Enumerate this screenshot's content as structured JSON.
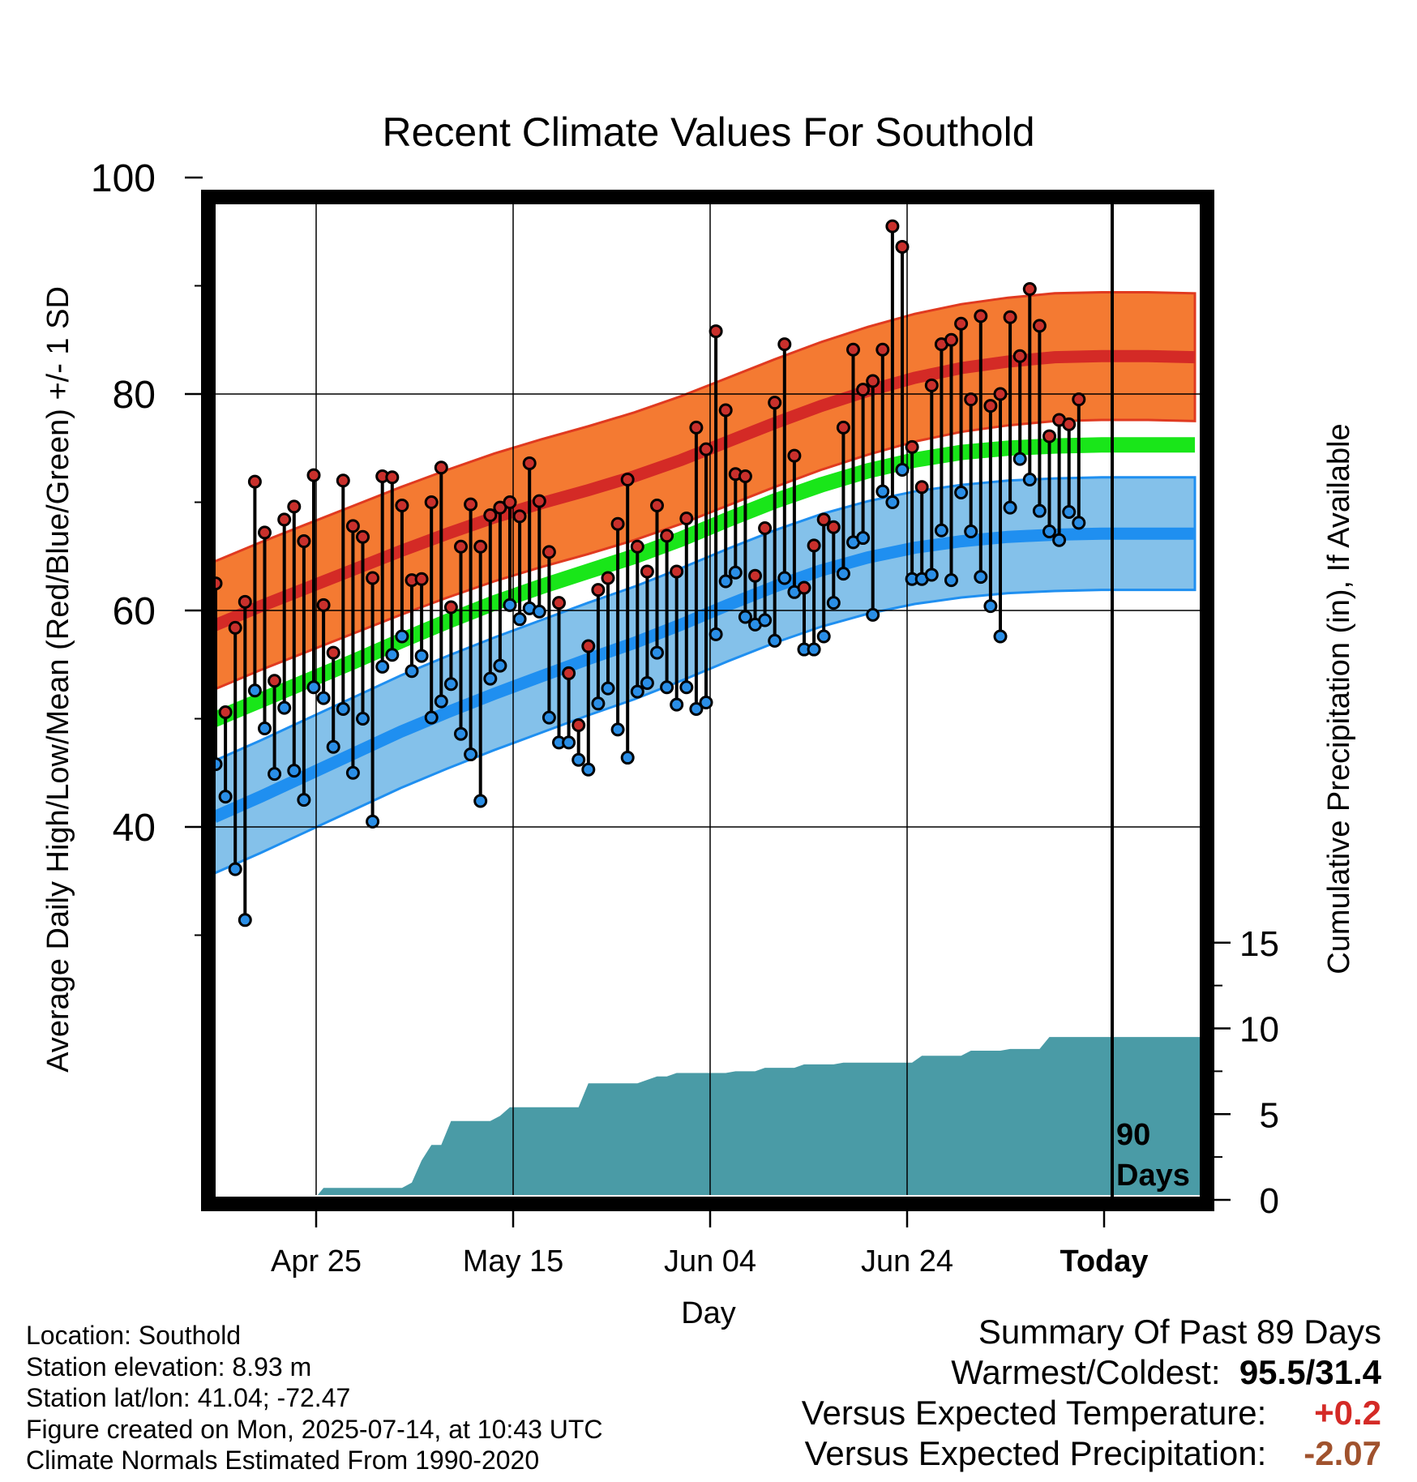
{
  "chart_data": {
    "type": "line",
    "title": "Recent Climate Values For Southold",
    "xlabel": "Day",
    "ylabel": "Average Daily High/Low/Mean (Red/Blue/Green) +/- 1 SD",
    "y2label": "Cumulative Precipitation (in), If Available",
    "ylim": [
      20,
      100
    ],
    "y2lim": [
      0,
      40
    ],
    "yticks": [
      "100",
      "80",
      "60",
      "40"
    ],
    "y2ticks": [
      "15",
      "10",
      "5",
      "0"
    ],
    "xticks": [
      "Apr 25",
      "May 15",
      "Jun 04",
      "Jun 24",
      "Today"
    ],
    "today_marker": {
      "line1": "90",
      "line2": "Days"
    },
    "normal_high": [
      58.6,
      60.4,
      62.1,
      63.8,
      65.5,
      67.1,
      68.6,
      69.9,
      71.1,
      72.4,
      73.9,
      75.6,
      77.3,
      78.9,
      80.3,
      81.5,
      82.4,
      83.0,
      83.4,
      83.5,
      83.5,
      83.4
    ],
    "normal_high_sd": 5.9,
    "normal_mean": [
      49.9,
      51.7,
      53.5,
      55.3,
      57.2,
      59.0,
      60.7,
      62.2,
      63.6,
      65.0,
      66.6,
      68.4,
      70.1,
      71.6,
      72.9,
      73.9,
      74.6,
      75.0,
      75.2,
      75.3,
      75.3,
      75.3
    ],
    "normal_low": [
      40.9,
      42.8,
      44.8,
      46.8,
      48.8,
      50.6,
      52.3,
      53.9,
      55.5,
      57.0,
      58.7,
      60.5,
      62.2,
      63.7,
      64.9,
      65.8,
      66.4,
      66.8,
      67.0,
      67.1,
      67.1,
      67.1
    ],
    "normal_low_sd": 5.2,
    "daily_high": [
      62.5,
      50.6,
      58.4,
      60.8,
      71.9,
      67.2,
      53.5,
      68.4,
      69.6,
      66.4,
      72.5,
      60.5,
      56.1,
      72.0,
      67.8,
      66.8,
      63.0,
      72.4,
      72.3,
      69.7,
      62.8,
      62.9,
      70.0,
      73.2,
      60.3,
      65.9,
      69.8,
      65.9,
      68.8,
      69.5,
      70.0,
      68.7,
      73.6,
      70.1,
      65.4,
      60.7,
      54.2,
      49.4,
      56.7,
      61.9,
      63.0,
      68.0,
      72.1,
      65.9,
      63.6,
      69.7,
      66.9,
      63.6,
      68.5,
      76.9,
      74.9,
      85.8,
      78.5,
      72.6,
      72.4,
      63.2,
      67.6,
      79.2,
      84.6,
      74.3,
      62.1,
      66.0,
      68.4,
      67.7,
      76.9,
      84.1,
      80.4,
      81.2,
      84.1,
      95.5,
      93.6,
      75.1,
      71.4,
      80.8,
      84.6,
      85.0,
      86.5,
      79.5,
      87.2,
      78.9,
      80.0,
      87.1,
      83.5,
      89.7,
      86.3,
      76.1,
      77.6,
      77.2,
      79.5
    ],
    "daily_low": [
      45.8,
      42.8,
      36.1,
      31.4,
      52.6,
      49.1,
      44.9,
      51.0,
      45.2,
      42.5,
      52.9,
      51.9,
      47.4,
      50.9,
      45.0,
      50.0,
      40.5,
      54.8,
      55.9,
      57.6,
      54.4,
      55.8,
      50.1,
      51.6,
      53.2,
      48.6,
      46.7,
      42.4,
      53.7,
      54.9,
      60.5,
      59.2,
      60.2,
      59.9,
      50.1,
      47.8,
      47.8,
      46.2,
      45.3,
      51.4,
      52.8,
      49.0,
      46.4,
      52.5,
      53.3,
      56.1,
      52.9,
      51.3,
      52.9,
      50.9,
      51.5,
      57.8,
      62.7,
      63.5,
      59.4,
      58.7,
      59.1,
      57.2,
      63.0,
      61.7,
      56.4,
      56.4,
      57.6,
      60.7,
      63.4,
      66.3,
      66.7,
      59.6,
      71.0,
      70.0,
      73.0,
      62.9,
      62.9,
      63.3,
      67.4,
      62.8,
      70.9,
      67.3,
      63.1,
      60.4,
      57.6,
      69.5,
      74.0,
      72.1,
      69.2,
      67.3,
      66.5,
      69.1,
      68.1
    ],
    "precip_cumulative": [
      0,
      0,
      0,
      0,
      0,
      0,
      0,
      0,
      0,
      0,
      0,
      0.7,
      0.7,
      0.7,
      0.7,
      0.7,
      0.7,
      0.7,
      0.7,
      0.7,
      1.0,
      2.3,
      3.2,
      3.2,
      4.6,
      4.6,
      4.6,
      4.6,
      4.6,
      4.9,
      5.4,
      5.4,
      5.4,
      5.4,
      5.4,
      5.4,
      5.4,
      5.4,
      6.8,
      6.8,
      6.8,
      6.8,
      6.8,
      6.8,
      7.0,
      7.2,
      7.2,
      7.4,
      7.4,
      7.4,
      7.4,
      7.4,
      7.4,
      7.5,
      7.5,
      7.5,
      7.7,
      7.7,
      7.7,
      7.7,
      7.9,
      7.9,
      7.9,
      7.9,
      8.0,
      8.0,
      8.0,
      8.0,
      8.0,
      8.0,
      8.0,
      8.0,
      8.4,
      8.4,
      8.4,
      8.4,
      8.4,
      8.7,
      8.7,
      8.7,
      8.7,
      8.8,
      8.8,
      8.8,
      8.8,
      9.5,
      9.5,
      9.5,
      9.5,
      9.5,
      9.5,
      9.5,
      9.5,
      9.5,
      9.5,
      9.5,
      9.5,
      9.5,
      9.5,
      9.5
    ]
  },
  "footer": {
    "location": "Location: Southold",
    "elevation": "Station elevation: 8.93 m",
    "latlon": "Station lat/lon: 41.04; -72.47",
    "created": "Figure created on Mon, 2025-07-14, at 10:43 UTC",
    "normals": "Climate Normals Estimated From 1990-2020"
  },
  "summary": {
    "heading": "Summary Of Past 89 Days",
    "warm_cold_label": "Warmest/Coldest:",
    "warm_cold_value": "95.5/31.4",
    "temp_label": "Versus Expected Temperature:",
    "temp_value": "+0.2",
    "precip_label": "Versus Expected Precipitation:",
    "precip_value": "-2.07"
  },
  "colors": {
    "high_band": "#f47a32",
    "high_line": "#d42a26",
    "low_band": "#84c1ea",
    "low_line": "#1f8ff0",
    "mean_line": "#19e619",
    "precip_fill": "#4a9ba6",
    "high_dot": "#c9302c",
    "low_dot": "#2a8ee6",
    "temp_anomaly": "#d42a26",
    "precip_anomaly": "#a0522d"
  }
}
